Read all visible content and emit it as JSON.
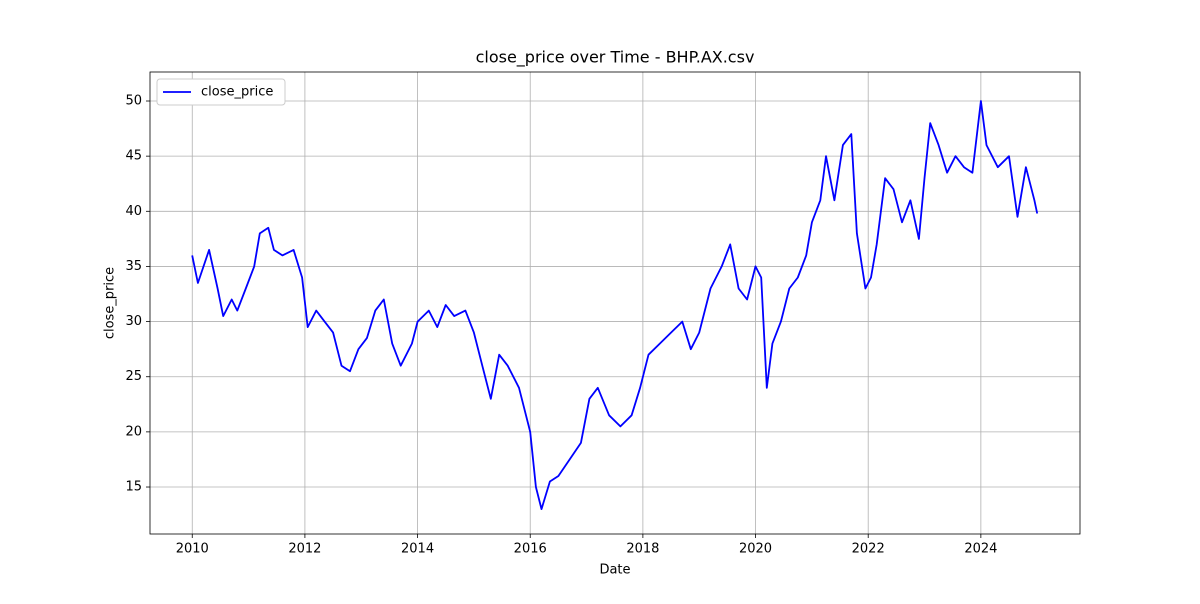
{
  "chart_data": {
    "type": "line",
    "title": "close_price over Time - BHP.AX.csv",
    "x_label": "Date",
    "y_label": "close_price",
    "x": [
      2010.0,
      2010.1,
      2010.3,
      2010.45,
      2010.55,
      2010.7,
      2010.8,
      2010.95,
      2011.1,
      2011.2,
      2011.35,
      2011.45,
      2011.6,
      2011.8,
      2011.95,
      2012.05,
      2012.2,
      2012.35,
      2012.5,
      2012.65,
      2012.8,
      2012.95,
      2013.1,
      2013.25,
      2013.4,
      2013.55,
      2013.7,
      2013.9,
      2014.0,
      2014.2,
      2014.35,
      2014.5,
      2014.65,
      2014.85,
      2015.0,
      2015.15,
      2015.3,
      2015.45,
      2015.6,
      2015.8,
      2016.0,
      2016.1,
      2016.2,
      2016.35,
      2016.5,
      2016.7,
      2016.9,
      2017.05,
      2017.2,
      2017.4,
      2017.6,
      2017.8,
      2017.95,
      2018.1,
      2018.3,
      2018.5,
      2018.7,
      2018.85,
      2019.0,
      2019.2,
      2019.4,
      2019.55,
      2019.7,
      2019.85,
      2020.0,
      2020.1,
      2020.2,
      2020.3,
      2020.45,
      2020.6,
      2020.75,
      2020.9,
      2021.0,
      2021.15,
      2021.25,
      2021.4,
      2021.55,
      2021.7,
      2021.8,
      2021.95,
      2022.05,
      2022.15,
      2022.3,
      2022.45,
      2022.6,
      2022.75,
      2022.9,
      2023.0,
      2023.1,
      2023.25,
      2023.4,
      2023.55,
      2023.7,
      2023.85,
      2024.0,
      2024.1,
      2024.3,
      2024.5,
      2024.65,
      2024.8,
      2024.95,
      2025.0
    ],
    "series": [
      {
        "name": "close_price",
        "color": "#0000ff",
        "values": [
          36,
          33.5,
          36.5,
          33,
          30.5,
          32,
          31,
          33,
          35,
          38,
          38.5,
          36.5,
          36,
          36.5,
          34,
          29.5,
          31,
          30,
          29,
          26,
          25.5,
          27.5,
          28.5,
          31,
          32,
          28,
          26,
          28,
          30,
          31,
          29.5,
          31.5,
          30.5,
          31,
          29,
          26,
          23,
          27,
          26,
          24,
          20,
          15,
          13,
          15.5,
          16,
          17.5,
          19,
          23,
          24,
          21.5,
          20.5,
          21.5,
          24,
          27,
          28,
          29,
          30,
          27.5,
          29,
          33,
          35,
          37,
          33,
          32,
          35,
          34,
          24,
          28,
          30,
          33,
          34,
          36,
          39,
          41,
          45,
          41,
          46,
          47,
          38,
          33,
          34,
          37,
          43,
          42,
          39,
          41,
          37.5,
          43,
          48,
          46,
          43.5,
          45,
          44,
          43.5,
          50,
          46,
          44,
          45,
          39.5,
          44,
          41,
          39.8
        ]
      }
    ],
    "xlim": [
      2009.25,
      2025.76
    ],
    "xticks": [
      2010,
      2012,
      2014,
      2016,
      2018,
      2020,
      2022,
      2024
    ],
    "ylim": [
      10.74,
      52.63
    ],
    "yticks": [
      15,
      20,
      25,
      30,
      35,
      40,
      45,
      50
    ],
    "grid": true,
    "legend": "upper-left"
  }
}
